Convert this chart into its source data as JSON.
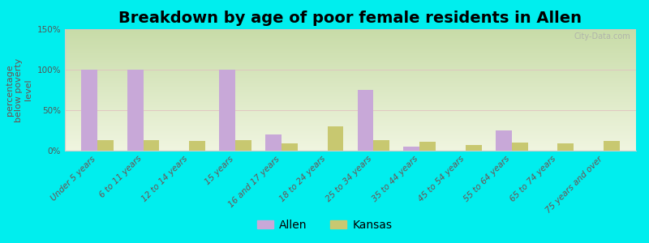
{
  "title": "Breakdown by age of poor female residents in Allen",
  "ylabel": "percentage\nbelow poverty\nlevel",
  "categories": [
    "Under 5 years",
    "6 to 11 years",
    "12 to 14 years",
    "15 years",
    "16 and 17 years",
    "18 to 24 years",
    "25 to 34 years",
    "35 to 44 years",
    "45 to 54 years",
    "55 to 64 years",
    "65 to 74 years",
    "75 years and over"
  ],
  "allen_values": [
    100,
    100,
    0,
    100,
    20,
    0,
    75,
    5,
    0,
    25,
    0,
    0
  ],
  "kansas_values": [
    13,
    13,
    12,
    13,
    9,
    30,
    13,
    11,
    7,
    10,
    9,
    12
  ],
  "allen_color": "#c8a8d8",
  "kansas_color": "#c8c870",
  "outer_bg": "#00eeee",
  "plot_bg_top": "#d8e8c0",
  "plot_bg_bottom": "#f0f8e0",
  "ylim": [
    0,
    150
  ],
  "yticks": [
    0,
    50,
    100,
    150
  ],
  "ytick_labels": [
    "0%",
    "50%",
    "100%",
    "150%"
  ],
  "bar_width": 0.35,
  "title_fontsize": 14,
  "ylabel_fontsize": 8,
  "tick_fontsize": 7.5,
  "legend_fontsize": 10,
  "watermark": "City-Data.com",
  "watermark_color": "#aaaaaa",
  "ylabel_color": "#705050",
  "xtick_color": "#705050"
}
